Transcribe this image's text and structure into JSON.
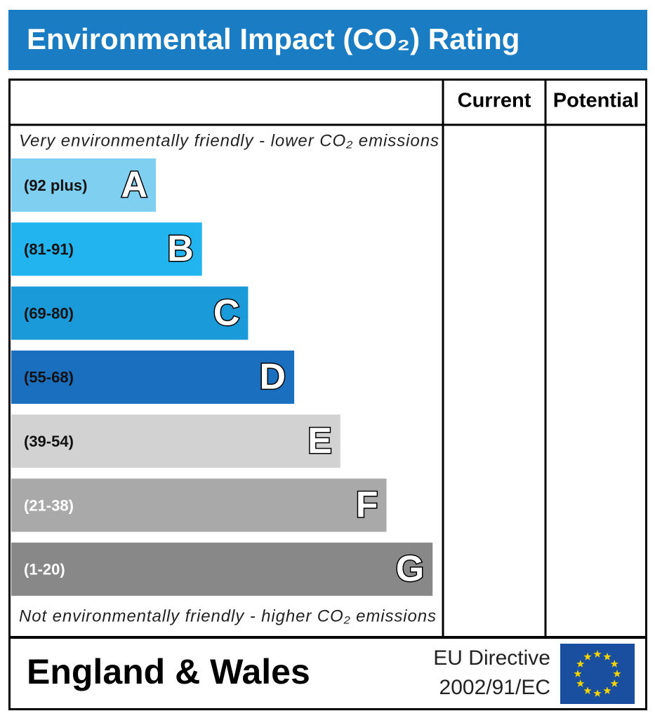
{
  "header": {
    "title": "Environmental Impact (CO₂) Rating"
  },
  "columns": {
    "current": "Current",
    "potential": "Potential"
  },
  "top_note": "Very environmentally friendly - lower CO₂ emissions",
  "bottom_note": "Not environmentally friendly - higher CO₂ emissions",
  "bands": [
    {
      "range": "(92 plus)",
      "letter": "A",
      "color": "#7fcff0",
      "text_color": "#111111"
    },
    {
      "range": "(81-91)",
      "letter": "B",
      "color": "#22b4ee",
      "text_color": "#111111"
    },
    {
      "range": "(69-80)",
      "letter": "C",
      "color": "#1a9ad8",
      "text_color": "#111111"
    },
    {
      "range": "(55-68)",
      "letter": "D",
      "color": "#1a6fbf",
      "text_color": "#111111"
    },
    {
      "range": "(39-54)",
      "letter": "E",
      "color": "#d2d2d2",
      "text_color": "#111111"
    },
    {
      "range": "(21-38)",
      "letter": "F",
      "color": "#a9a9a9",
      "text_color": "#ffffff"
    },
    {
      "range": "(1-20)",
      "letter": "G",
      "color": "#888888",
      "text_color": "#ffffff"
    }
  ],
  "footer": {
    "region": "England & Wales",
    "directive_line1": "EU Directive",
    "directive_line2": "2002/91/EC"
  }
}
